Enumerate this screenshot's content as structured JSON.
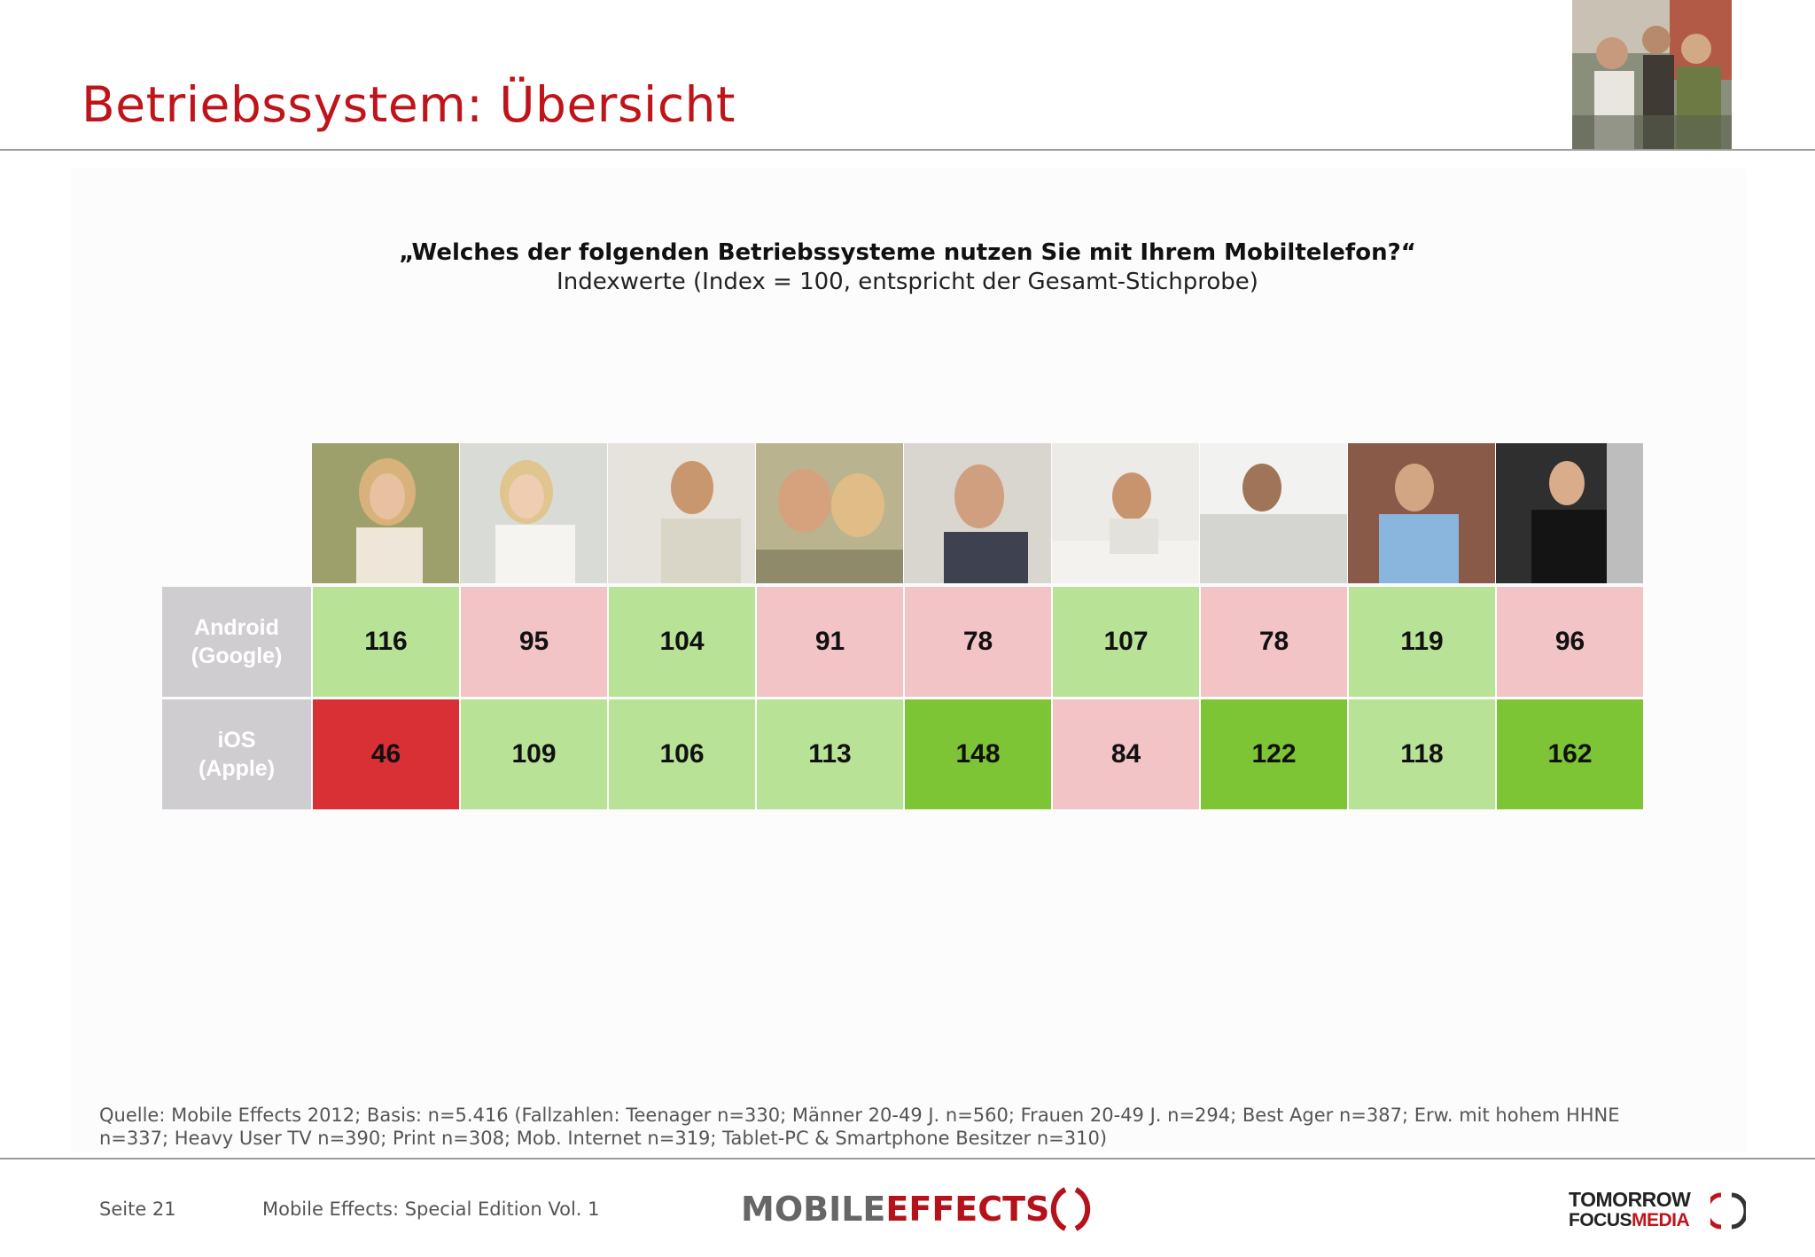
{
  "header": {
    "title": "Betriebssystem: Übersicht"
  },
  "question": {
    "text": "„Welches der folgenden Betriebssysteme nutzen Sie mit Ihrem Mobiltelefon?“",
    "subtitle": "Indexwerte (Index = 100, entspricht der Gesamt-Stichprobe)"
  },
  "colors": {
    "light_green": "#b8e396",
    "dark_green": "#7dc534",
    "light_red": "#f2c4c6",
    "dark_red": "#d93035",
    "label_gray": "#cfcdd0",
    "title_red": "#c0141b"
  },
  "chart_data": {
    "type": "table",
    "row_labels": [
      "Android\n(Google)",
      "iOS\n(Apple)"
    ],
    "rows": [
      {
        "values": [
          116,
          95,
          104,
          91,
          78,
          107,
          78,
          119,
          96
        ],
        "colors": [
          "light_green",
          "light_red",
          "light_green",
          "light_red",
          "light_red",
          "light_green",
          "light_red",
          "light_green",
          "light_red"
        ]
      },
      {
        "values": [
          46,
          109,
          106,
          113,
          148,
          84,
          122,
          118,
          162
        ],
        "colors": [
          "dark_red",
          "light_green",
          "light_green",
          "light_green",
          "dark_green",
          "light_red",
          "dark_green",
          "light_green",
          "dark_green"
        ]
      }
    ]
  },
  "source": {
    "text": "Quelle: Mobile Effects 2012; Basis: n=5.416 (Fallzahlen: Teenager n=330; Männer 20-49 J. n=560; Frauen 20-49 J. n=294; Best Ager n=387; Erw. mit hohem HHNE n=337; Heavy User TV n=390; Print n=308; Mob. Internet n=319; Tablet-PC & Smartphone Besitzer n=310)"
  },
  "footer": {
    "page": "Seite 21",
    "publication": "Mobile Effects: Special Edition Vol. 1",
    "logo_mobile": "MOBILE",
    "logo_effects": "EFFECTS",
    "tfm_line1": "TOMORROW",
    "tfm_focus": "FOCUS",
    "tfm_media": "MEDIA"
  }
}
